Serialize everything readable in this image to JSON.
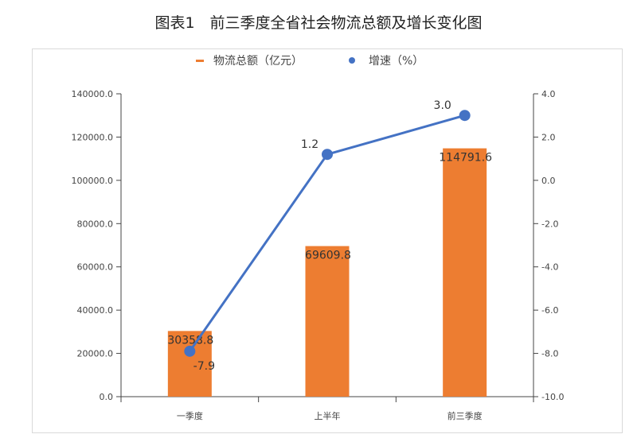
{
  "title": "图表1　前三季度全省社会物流总额及增长变化图",
  "colors": {
    "bar": "#ED7D31",
    "line": "#4472C4",
    "axis": "#444444",
    "text": "#444444"
  },
  "chart_data": {
    "type": "bar",
    "categories": [
      "一季度",
      "上半年",
      "前三季度"
    ],
    "series": [
      {
        "name": "物流总额（亿元）",
        "type": "bar",
        "axis": "left",
        "values": [
          30358.8,
          69609.8,
          114791.6
        ],
        "labels": [
          "30358.8",
          "69609.8",
          "114791.6"
        ]
      },
      {
        "name": "增速（%）",
        "type": "line",
        "axis": "right",
        "values": [
          -7.9,
          1.2,
          3.0
        ],
        "labels": [
          "-7.9",
          "1.2",
          "3.0"
        ]
      }
    ],
    "y_left": {
      "min": 0,
      "max": 140000,
      "step": 20000,
      "ticks": [
        "0.0",
        "20000.0",
        "40000.0",
        "60000.0",
        "80000.0",
        "100000.0",
        "120000.0",
        "140000.0"
      ]
    },
    "y_right": {
      "min": -10,
      "max": 4,
      "step": 2,
      "ticks": [
        "-10.0",
        "-8.0",
        "-6.0",
        "-4.0",
        "-2.0",
        "0.0",
        "2.0",
        "4.0"
      ]
    },
    "legend_position": "top-center",
    "grid": false
  }
}
